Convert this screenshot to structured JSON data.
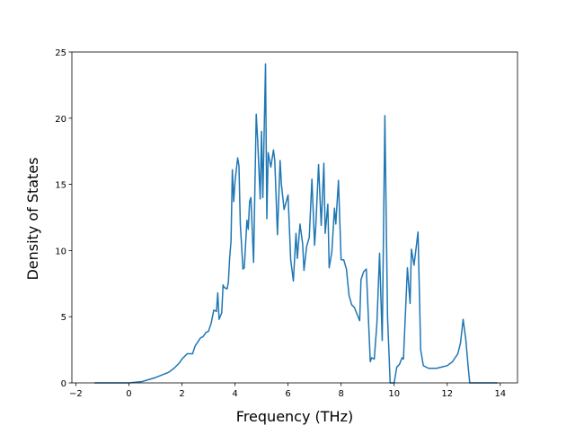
{
  "chart_data": {
    "type": "line",
    "xlabel": "Frequency (THz)",
    "ylabel": "Density of States",
    "x": [
      -1.3,
      0,
      0.5,
      1.0,
      1.5,
      1.7,
      1.9,
      2.0,
      2.2,
      2.4,
      2.5,
      2.7,
      2.8,
      2.9,
      3.0,
      3.1,
      3.2,
      3.3,
      3.35,
      3.4,
      3.5,
      3.55,
      3.6,
      3.7,
      3.75,
      3.8,
      3.85,
      3.9,
      3.95,
      4.0,
      4.1,
      4.15,
      4.2,
      4.3,
      4.35,
      4.45,
      4.5,
      4.55,
      4.6,
      4.7,
      4.8,
      4.85,
      4.95,
      5.0,
      5.05,
      5.15,
      5.2,
      5.25,
      5.35,
      5.45,
      5.5,
      5.6,
      5.7,
      5.75,
      5.85,
      6.0,
      6.1,
      6.2,
      6.3,
      6.35,
      6.45,
      6.55,
      6.6,
      6.7,
      6.8,
      6.9,
      7.0,
      7.05,
      7.15,
      7.25,
      7.35,
      7.4,
      7.5,
      7.55,
      7.65,
      7.75,
      7.8,
      7.9,
      8.0,
      8.1,
      8.2,
      8.3,
      8.4,
      8.5,
      8.6,
      8.7,
      8.75,
      8.85,
      8.95,
      9.1,
      9.15,
      9.25,
      9.35,
      9.45,
      9.55,
      9.65,
      9.75,
      9.85,
      10.0,
      10.1,
      10.2,
      10.3,
      10.35,
      10.5,
      10.6,
      10.65,
      10.75,
      10.9,
      11.0,
      11.1,
      11.3,
      11.6,
      11.8,
      12.0,
      12.2,
      12.4,
      12.5,
      12.6,
      12.7,
      12.8,
      12.85,
      13.0,
      13.9
    ],
    "series": [
      {
        "color": "#1f77b4",
        "values": [
          0,
          0,
          0.1,
          0.4,
          0.8,
          1.1,
          1.5,
          1.8,
          2.2,
          2.2,
          2.8,
          3.4,
          3.5,
          3.8,
          3.9,
          4.5,
          5.5,
          5.4,
          6.8,
          4.8,
          5.3,
          7.4,
          7.2,
          7.1,
          7.6,
          9.5,
          10.7,
          16.1,
          13.7,
          15.2,
          17.0,
          16.4,
          12.0,
          8.6,
          8.7,
          12.3,
          11.6,
          13.7,
          14.0,
          9.1,
          20.3,
          18.5,
          13.9,
          19.0,
          14.0,
          24.1,
          12.4,
          17.4,
          16.3,
          17.6,
          16.8,
          11.2,
          16.8,
          15.0,
          13.1,
          14.2,
          9.3,
          7.7,
          11.3,
          9.4,
          12.0,
          10.5,
          8.5,
          10.3,
          11.0,
          15.4,
          10.4,
          12.0,
          16.5,
          11.9,
          16.6,
          11.3,
          13.5,
          8.7,
          9.9,
          13.2,
          12.0,
          15.3,
          9.3,
          9.3,
          8.6,
          6.6,
          5.9,
          5.7,
          5.2,
          4.7,
          7.8,
          8.4,
          8.6,
          1.6,
          1.9,
          1.8,
          4.5,
          9.8,
          3.2,
          20.2,
          5.0,
          0,
          0,
          1.2,
          1.4,
          1.9,
          1.8,
          8.7,
          6.0,
          10.1,
          8.9,
          11.4,
          2.5,
          1.3,
          1.1,
          1.1,
          1.2,
          1.3,
          1.6,
          2.2,
          3.0,
          4.8,
          3.3,
          1.0,
          0,
          0,
          0
        ]
      }
    ],
    "xlim": [
      -2.15,
      14.65
    ],
    "ylim": [
      0,
      25
    ],
    "xticks": [
      {
        "value": -2,
        "label": "−2"
      },
      0,
      2,
      4,
      6,
      8,
      10,
      12,
      14
    ],
    "yticks": [
      0,
      5,
      10,
      15,
      20,
      25
    ]
  }
}
